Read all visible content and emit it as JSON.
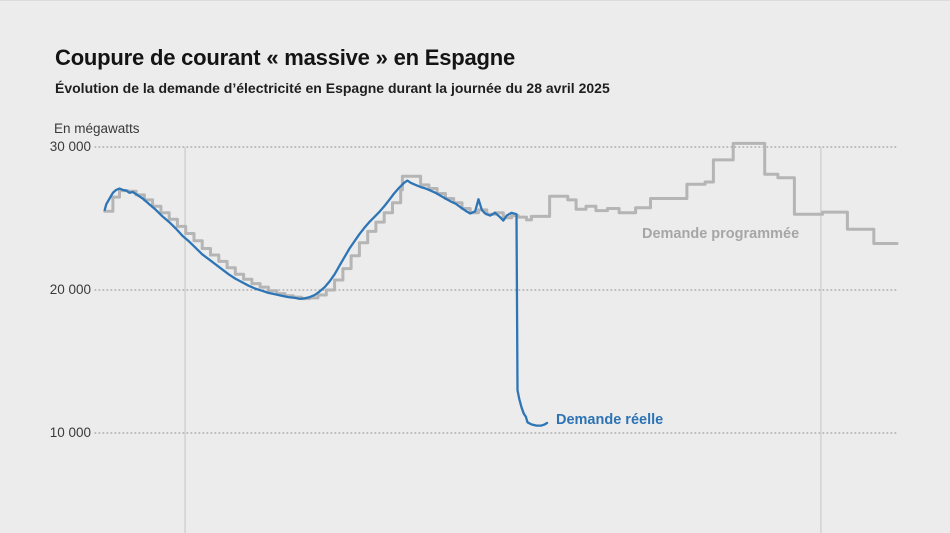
{
  "chart_data": {
    "type": "line",
    "title": "Coupure de courant « massive » en Espagne",
    "subtitle": "Évolution de la demande d’électricité en Espagne durant la journée du 28 avril 2025",
    "ylabel": "En mégawatts",
    "xlabel": "",
    "grid": {
      "horizontal": "dotted",
      "vertical": "solid",
      "legend_position": "inline-labels"
    },
    "x_axis": {
      "unit": "hours",
      "range": [
        0,
        24
      ],
      "tick_labels_visible": false,
      "vertical_gridlines_hours": [
        2.48,
        21.7
      ]
    },
    "y_axis": {
      "range": [
        8000,
        30500
      ],
      "ticks": [
        {
          "value": 30000,
          "label": "30 000"
        },
        {
          "value": 20000,
          "label": "20 000"
        },
        {
          "value": 10000,
          "label": "10 000"
        }
      ]
    },
    "series": [
      {
        "name": "Demande programmée",
        "style": "step",
        "color": "#b5b5b5",
        "label_color": "#a6a6a6",
        "points": [
          [
            0.05,
            25500
          ],
          [
            0.3,
            26500
          ],
          [
            0.5,
            26950
          ],
          [
            0.75,
            26900
          ],
          [
            1.0,
            26650
          ],
          [
            1.25,
            26300
          ],
          [
            1.5,
            25850
          ],
          [
            1.75,
            25400
          ],
          [
            2.0,
            24950
          ],
          [
            2.25,
            24450
          ],
          [
            2.5,
            23950
          ],
          [
            2.75,
            23450
          ],
          [
            3.0,
            22900
          ],
          [
            3.25,
            22450
          ],
          [
            3.5,
            22000
          ],
          [
            3.75,
            21550
          ],
          [
            4.0,
            21100
          ],
          [
            4.25,
            20750
          ],
          [
            4.5,
            20450
          ],
          [
            4.75,
            20200
          ],
          [
            5.0,
            19950
          ],
          [
            5.25,
            19750
          ],
          [
            5.5,
            19600
          ],
          [
            5.75,
            19500
          ],
          [
            6.0,
            19400
          ],
          [
            6.25,
            19450
          ],
          [
            6.5,
            19650
          ],
          [
            6.75,
            20000
          ],
          [
            7.0,
            20700
          ],
          [
            7.25,
            21500
          ],
          [
            7.5,
            22400
          ],
          [
            7.75,
            23300
          ],
          [
            8.0,
            24100
          ],
          [
            8.25,
            24750
          ],
          [
            8.5,
            25400
          ],
          [
            8.75,
            26100
          ],
          [
            9.0,
            27000
          ],
          [
            9.05,
            27950
          ],
          [
            9.6,
            27350
          ],
          [
            9.85,
            27100
          ],
          [
            10.1,
            26750
          ],
          [
            10.35,
            26400
          ],
          [
            10.6,
            26100
          ],
          [
            10.85,
            25700
          ],
          [
            11.1,
            25400
          ],
          [
            11.35,
            25600
          ],
          [
            11.6,
            25300
          ],
          [
            11.85,
            25400
          ],
          [
            12.1,
            25050
          ],
          [
            12.35,
            25200
          ],
          [
            12.55,
            25100
          ],
          [
            12.8,
            24900
          ],
          [
            12.95,
            25150
          ],
          [
            13.5,
            26550
          ],
          [
            14.05,
            26300
          ],
          [
            14.3,
            25650
          ],
          [
            14.6,
            25850
          ],
          [
            14.9,
            25550
          ],
          [
            15.25,
            25700
          ],
          [
            15.6,
            25400
          ],
          [
            16.1,
            25750
          ],
          [
            16.55,
            26400
          ],
          [
            17.65,
            27400
          ],
          [
            18.2,
            27550
          ],
          [
            18.45,
            29100
          ],
          [
            19.05,
            30250
          ],
          [
            20.0,
            28100
          ],
          [
            20.4,
            27850
          ],
          [
            20.9,
            25300
          ],
          [
            21.75,
            25450
          ],
          [
            22.5,
            24250
          ],
          [
            23.3,
            23250
          ],
          [
            24.0,
            23250
          ]
        ]
      },
      {
        "name": "Demande réelle",
        "style": "linear",
        "color": "#2e75b6",
        "label_color": "#2d73b4",
        "points": [
          [
            0.05,
            25600
          ],
          [
            0.1,
            26000
          ],
          [
            0.2,
            26400
          ],
          [
            0.3,
            26800
          ],
          [
            0.4,
            27000
          ],
          [
            0.5,
            27100
          ],
          [
            0.6,
            27000
          ],
          [
            0.7,
            26950
          ],
          [
            0.8,
            26800
          ],
          [
            0.9,
            26850
          ],
          [
            1.0,
            26700
          ],
          [
            1.2,
            26400
          ],
          [
            1.4,
            26000
          ],
          [
            1.6,
            25600
          ],
          [
            1.8,
            25150
          ],
          [
            2.0,
            24750
          ],
          [
            2.2,
            24300
          ],
          [
            2.4,
            23800
          ],
          [
            2.6,
            23400
          ],
          [
            2.8,
            22950
          ],
          [
            3.0,
            22500
          ],
          [
            3.2,
            22150
          ],
          [
            3.4,
            21800
          ],
          [
            3.6,
            21450
          ],
          [
            3.8,
            21100
          ],
          [
            4.0,
            20800
          ],
          [
            4.2,
            20550
          ],
          [
            4.4,
            20300
          ],
          [
            4.6,
            20100
          ],
          [
            4.8,
            19950
          ],
          [
            5.0,
            19800
          ],
          [
            5.2,
            19700
          ],
          [
            5.4,
            19600
          ],
          [
            5.6,
            19500
          ],
          [
            5.8,
            19450
          ],
          [
            5.95,
            19380
          ],
          [
            6.1,
            19420
          ],
          [
            6.25,
            19500
          ],
          [
            6.4,
            19650
          ],
          [
            6.55,
            19900
          ],
          [
            6.7,
            20200
          ],
          [
            6.85,
            20600
          ],
          [
            7.0,
            21100
          ],
          [
            7.15,
            21700
          ],
          [
            7.3,
            22300
          ],
          [
            7.45,
            22900
          ],
          [
            7.6,
            23400
          ],
          [
            7.75,
            23900
          ],
          [
            7.9,
            24350
          ],
          [
            8.05,
            24750
          ],
          [
            8.2,
            25100
          ],
          [
            8.35,
            25450
          ],
          [
            8.5,
            25850
          ],
          [
            8.65,
            26300
          ],
          [
            8.8,
            26750
          ],
          [
            8.95,
            27150
          ],
          [
            9.1,
            27500
          ],
          [
            9.2,
            27650
          ],
          [
            9.3,
            27500
          ],
          [
            9.45,
            27350
          ],
          [
            9.6,
            27200
          ],
          [
            9.75,
            27100
          ],
          [
            9.9,
            26950
          ],
          [
            10.05,
            26800
          ],
          [
            10.2,
            26600
          ],
          [
            10.35,
            26400
          ],
          [
            10.5,
            26200
          ],
          [
            10.65,
            26050
          ],
          [
            10.8,
            25800
          ],
          [
            10.95,
            25550
          ],
          [
            11.1,
            25350
          ],
          [
            11.25,
            25500
          ],
          [
            11.35,
            26350
          ],
          [
            11.45,
            25600
          ],
          [
            11.55,
            25350
          ],
          [
            11.7,
            25200
          ],
          [
            11.85,
            25400
          ],
          [
            12.0,
            25100
          ],
          [
            12.1,
            24850
          ],
          [
            12.2,
            25200
          ],
          [
            12.35,
            25400
          ],
          [
            12.5,
            25300
          ],
          [
            12.53,
            13000
          ],
          [
            12.58,
            12400
          ],
          [
            12.65,
            11800
          ],
          [
            12.72,
            11350
          ],
          [
            12.78,
            11150
          ],
          [
            12.83,
            10750
          ],
          [
            12.95,
            10600
          ],
          [
            13.1,
            10520
          ],
          [
            13.25,
            10520
          ],
          [
            13.35,
            10600
          ],
          [
            13.42,
            10700
          ]
        ]
      }
    ],
    "annotations": [
      {
        "text": "Demande programmée",
        "series": 0
      },
      {
        "text": "Demande réelle",
        "series": 1
      }
    ],
    "colors": {
      "background": "#ececec",
      "grid_dotted": "#9e9e9e",
      "grid_vertical": "#cdcdcd",
      "title": "#141414",
      "tick_text": "#3a3a3a"
    }
  }
}
